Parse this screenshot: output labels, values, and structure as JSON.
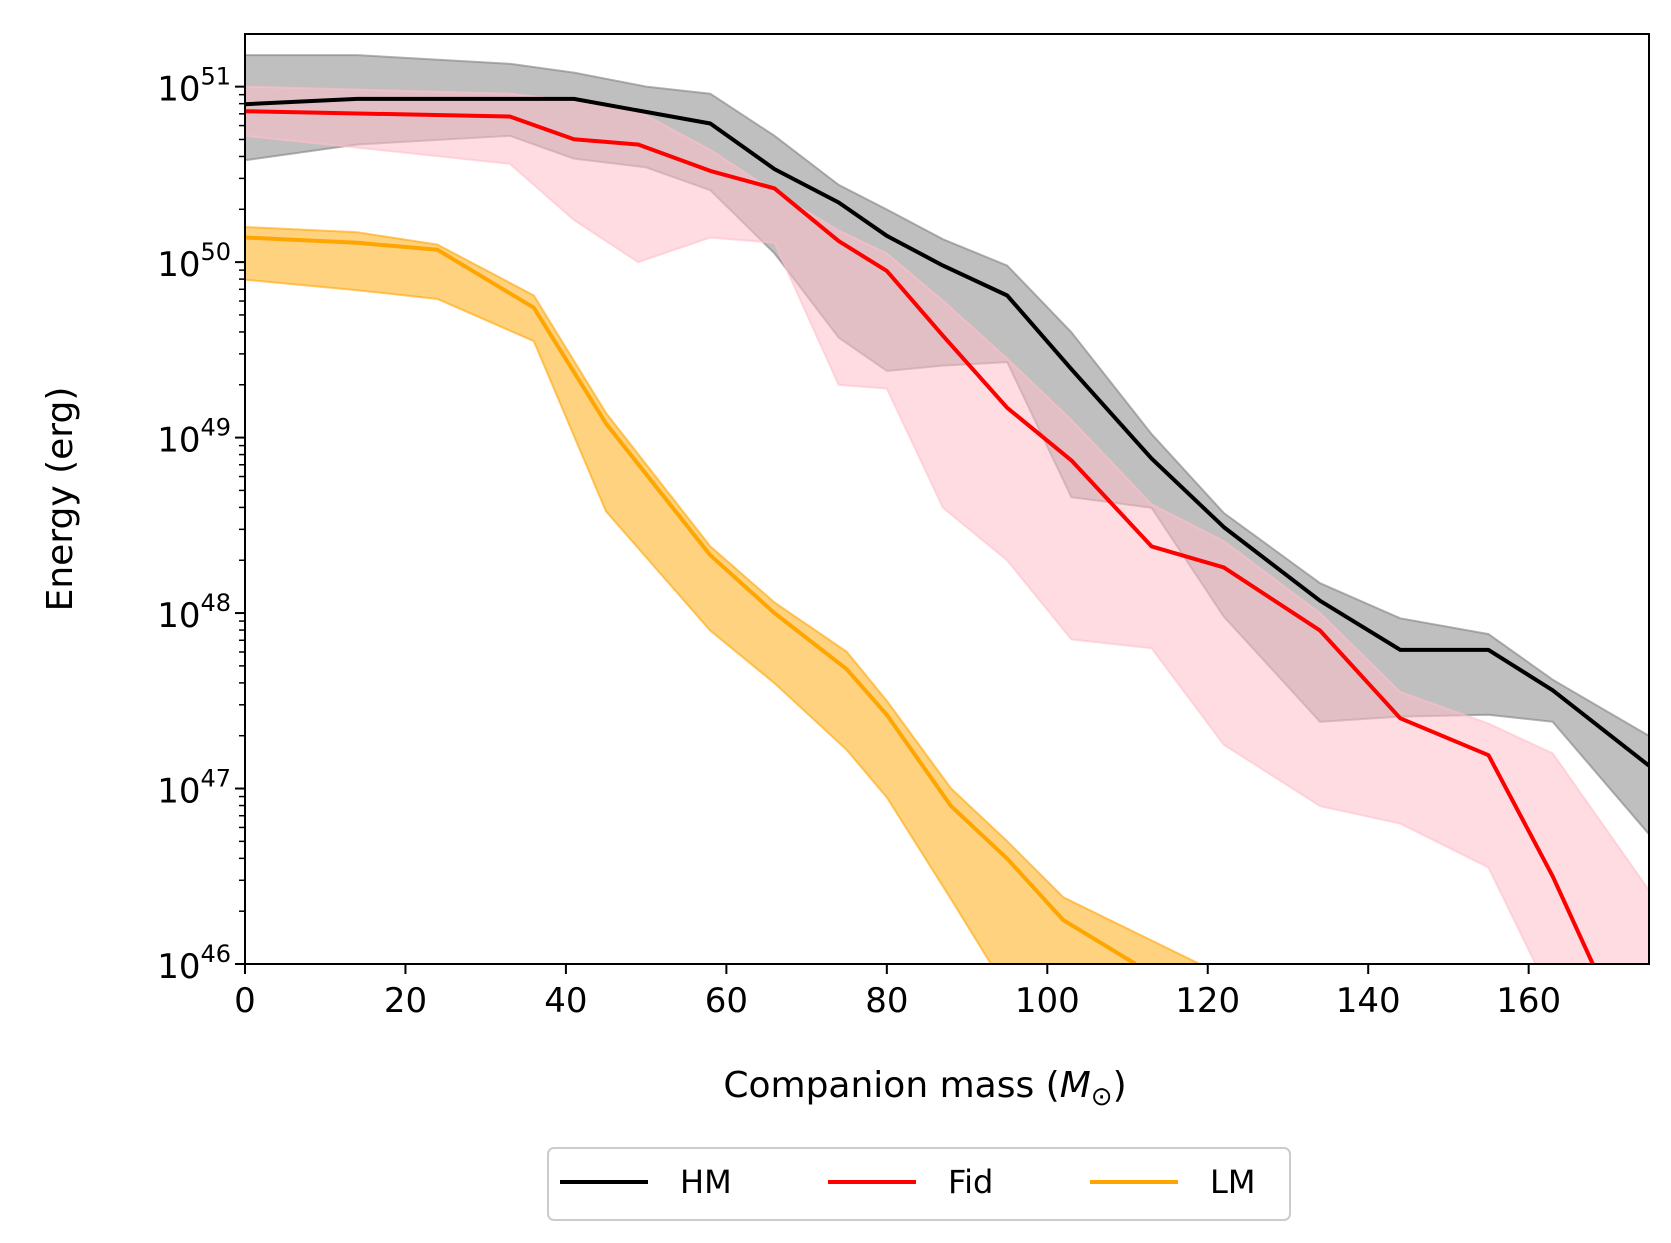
{
  "chart_data": {
    "type": "line",
    "title": "",
    "xlabel": "Companion mass",
    "xlabel_unit_symbol": "M",
    "xlabel_unit_subscript": "⊙",
    "ylabel": "Energy (erg)",
    "xlim": [
      0,
      175
    ],
    "ylim_log10": [
      46,
      51.4
    ],
    "yscale": "log",
    "x_ticks": [
      0,
      20,
      40,
      60,
      80,
      100,
      120,
      140,
      160
    ],
    "y_tick_exponents": [
      46,
      47,
      48,
      49,
      50,
      51
    ],
    "y_tick_base": "10",
    "legend_position": "below-center",
    "series": [
      {
        "name": "HM",
        "color": "#000000",
        "band_color": "#808080",
        "x": [
          0,
          14,
          41,
          58,
          66,
          74,
          80,
          87,
          95,
          103,
          113,
          122,
          134,
          144,
          155,
          163,
          175
        ],
        "y_log10": [
          50.9,
          50.93,
          50.93,
          50.79,
          50.53,
          50.34,
          50.15,
          49.98,
          49.81,
          49.39,
          48.88,
          48.49,
          48.07,
          47.79,
          47.79,
          47.56,
          47.13
        ],
        "band_x": [
          0,
          14,
          33,
          41,
          50,
          58,
          66,
          74,
          80,
          87,
          95,
          103,
          113,
          122,
          134,
          144,
          155,
          163,
          175
        ],
        "band_upper_log10": [
          51.18,
          51.18,
          51.13,
          51.08,
          51.0,
          50.96,
          50.72,
          50.44,
          50.3,
          50.13,
          49.98,
          49.6,
          49.02,
          48.57,
          48.17,
          47.97,
          47.88,
          47.62,
          47.3
        ],
        "band_lower_log10": [
          50.58,
          50.67,
          50.72,
          50.59,
          50.54,
          50.41,
          50.05,
          49.57,
          49.38,
          49.41,
          49.43,
          48.66,
          48.6,
          47.98,
          47.38,
          47.41,
          47.42,
          47.38,
          46.74
        ]
      },
      {
        "name": "Fid",
        "color": "#ff0000",
        "band_color": "#ffc0cb",
        "x": [
          0,
          33,
          41,
          49,
          58,
          66,
          74,
          80,
          87,
          95,
          103,
          113,
          122,
          134,
          144,
          155,
          163,
          168
        ],
        "y_log10": [
          50.86,
          50.83,
          50.7,
          50.67,
          50.52,
          50.42,
          50.12,
          49.95,
          49.58,
          49.17,
          48.87,
          48.38,
          48.26,
          47.9,
          47.4,
          47.19,
          46.5,
          46.0
        ],
        "band_x": [
          0,
          33,
          41,
          49,
          58,
          66,
          74,
          80,
          87,
          95,
          103,
          113,
          122,
          134,
          144,
          155,
          163,
          175
        ],
        "band_upper_log10": [
          51.0,
          50.96,
          50.92,
          50.86,
          50.64,
          50.4,
          50.18,
          50.05,
          49.78,
          49.45,
          49.1,
          48.62,
          48.41,
          48.0,
          47.55,
          47.37,
          47.2,
          46.42
        ],
        "band_lower_log10": [
          50.72,
          50.56,
          50.24,
          50.0,
          50.14,
          50.11,
          49.3,
          49.28,
          48.6,
          48.3,
          47.85,
          47.8,
          47.25,
          46.9,
          46.8,
          46.55,
          45.8,
          45.8
        ]
      },
      {
        "name": "LM",
        "color": "#ffa500",
        "band_color": "#ffa500",
        "x": [
          0,
          14,
          24,
          36,
          45,
          58,
          66,
          75,
          80,
          88,
          95,
          102,
          111
        ],
        "y_log10": [
          50.14,
          50.11,
          50.07,
          49.74,
          49.08,
          48.33,
          48.0,
          47.68,
          47.42,
          46.9,
          46.6,
          46.25,
          46.0
        ],
        "band_x": [
          0,
          14,
          24,
          36,
          45,
          58,
          66,
          75,
          80,
          88,
          95,
          102,
          119
        ],
        "band_upper_log10": [
          50.2,
          50.17,
          50.1,
          49.81,
          49.14,
          48.38,
          48.06,
          47.78,
          47.5,
          47.0,
          46.7,
          46.38,
          46.0
        ],
        "band_lower_log10": [
          49.9,
          49.84,
          49.79,
          49.55,
          48.58,
          47.9,
          47.6,
          47.22,
          46.95,
          46.37,
          45.85,
          45.85,
          45.85
        ]
      }
    ]
  }
}
